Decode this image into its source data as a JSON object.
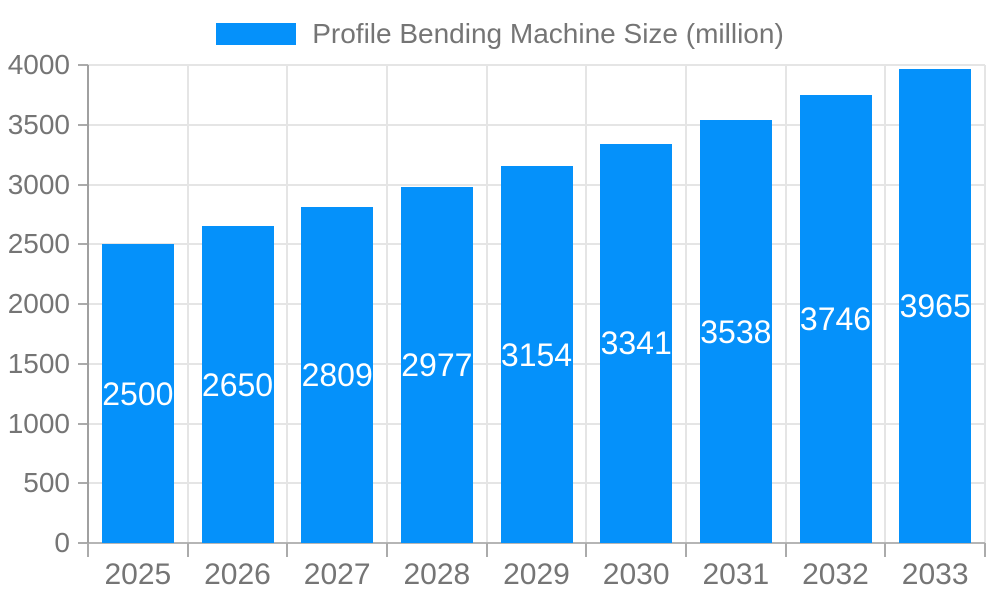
{
  "chart_data": {
    "type": "bar",
    "title": "Profile Bending Machine Size (million)",
    "legend": {
      "label": "Profile Bending Machine Size (million)",
      "position": "top-center"
    },
    "categories": [
      "2025",
      "2026",
      "2027",
      "2028",
      "2029",
      "2030",
      "2031",
      "2032",
      "2033"
    ],
    "series": [
      {
        "name": "Profile Bending Machine Size (million)",
        "values": [
          2500,
          2650,
          2809,
          2977,
          3154,
          3341,
          3538,
          3746,
          3965
        ]
      }
    ],
    "value_labels_shown": true,
    "xlabel": "",
    "ylabel": "",
    "ylim": [
      0,
      4000
    ],
    "y_tick_step": 500,
    "y_ticks": [
      0,
      500,
      1000,
      1500,
      2000,
      2500,
      3000,
      3500,
      4000
    ],
    "grid": true,
    "colors": {
      "bar": "#0591FA",
      "value_label": "#FFFFFF",
      "axis_label": "#757575",
      "legend_text": "#757575",
      "gridline": "#E5E5E5",
      "y_axis_line": "#A0A0A0",
      "x_axis_line": "#B5B5B5",
      "tick": "#ABABAB",
      "background": "#FFFFFF"
    }
  }
}
